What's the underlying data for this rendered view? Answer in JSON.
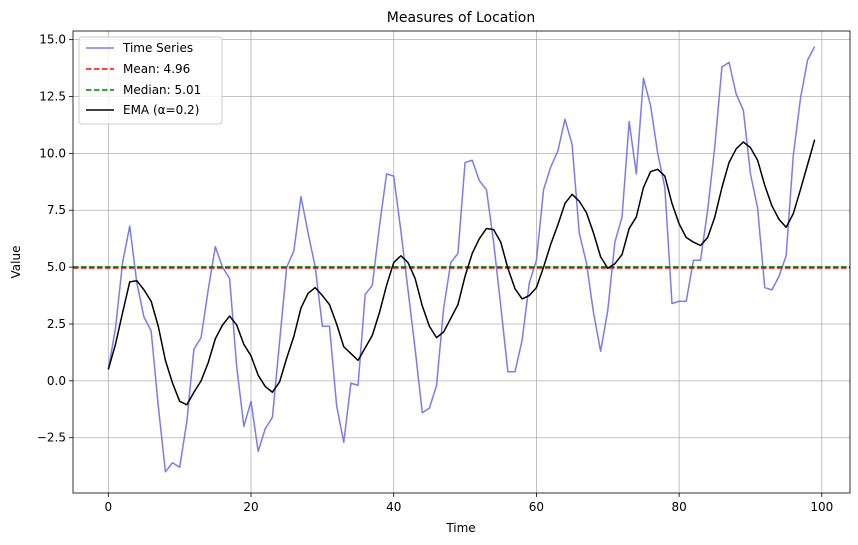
{
  "chart_data": {
    "type": "line",
    "title": "Measures of Location",
    "xlabel": "Time",
    "ylabel": "Value",
    "xlim": [
      -4.95,
      103.95
    ],
    "ylim": [
      -4.93,
      15.38
    ],
    "grid": true,
    "legend_location": "top-left",
    "xticks": [
      0,
      20,
      40,
      60,
      80,
      100
    ],
    "yticks": [
      -2.5,
      0.0,
      2.5,
      5.0,
      7.5,
      10.0,
      12.5,
      15.0
    ],
    "xtick_labels": [
      "0",
      "20",
      "40",
      "60",
      "80",
      "100"
    ],
    "ytick_labels": [
      "−2.5",
      "0.0",
      "2.5",
      "5.0",
      "7.5",
      "10.0",
      "12.5",
      "15.0"
    ],
    "series": [
      {
        "name": "Time Series",
        "label": "Time Series",
        "color": "#7b7bef",
        "style": "solid",
        "x": [
          0,
          1,
          2,
          3,
          4,
          5,
          6,
          7,
          8,
          9,
          10,
          11,
          12,
          13,
          14,
          15,
          16,
          17,
          18,
          19,
          20,
          21,
          22,
          23,
          24,
          25,
          26,
          27,
          28,
          29,
          30,
          31,
          32,
          33,
          34,
          35,
          36,
          37,
          38,
          39,
          40,
          41,
          42,
          43,
          44,
          45,
          46,
          47,
          48,
          49,
          50,
          51,
          52,
          53,
          54,
          55,
          56,
          57,
          58,
          59,
          60,
          61,
          62,
          63,
          64,
          65,
          66,
          67,
          68,
          69,
          70,
          71,
          72,
          73,
          74,
          75,
          76,
          77,
          78,
          79,
          80,
          81,
          82,
          83,
          84,
          85,
          86,
          87,
          88,
          89,
          90,
          91,
          92,
          93,
          94,
          95,
          96,
          97,
          98,
          99
        ],
        "values": [
          0.5,
          2.3,
          5.2,
          6.8,
          4.3,
          2.8,
          2.2,
          -1.1,
          -4.0,
          -3.6,
          -3.8,
          -1.8,
          1.4,
          1.9,
          4.0,
          5.9,
          5.0,
          4.5,
          0.6,
          -2.0,
          -0.9,
          -3.1,
          -2.1,
          -1.6,
          1.7,
          5.0,
          5.7,
          8.1,
          6.5,
          5.0,
          2.4,
          2.4,
          -1.1,
          -2.7,
          -0.1,
          -0.2,
          3.8,
          4.2,
          6.8,
          9.1,
          9.0,
          6.6,
          4.0,
          1.4,
          -1.4,
          -1.2,
          -0.2,
          3.2,
          5.2,
          5.6,
          9.6,
          9.7,
          8.8,
          8.4,
          6.1,
          3.3,
          0.4,
          0.4,
          1.8,
          4.3,
          5.3,
          8.4,
          9.4,
          10.1,
          11.5,
          10.4,
          6.5,
          5.2,
          3.0,
          1.3,
          3.1,
          6.1,
          7.2,
          11.4,
          9.1,
          13.3,
          12.1,
          10.0,
          8.5,
          3.4,
          3.5,
          3.5,
          5.3,
          5.3,
          7.5,
          10.3,
          13.8,
          14.0,
          12.6,
          11.9,
          9.1,
          7.6,
          4.1,
          4.0,
          4.6,
          5.5,
          9.9,
          12.4,
          14.1,
          14.7
        ]
      },
      {
        "name": "Mean",
        "label": "Mean: 4.96",
        "color": "#ff0000",
        "style": "dashed",
        "value": 4.96
      },
      {
        "name": "Median",
        "label": "Median: 5.01",
        "color": "#008000",
        "style": "dashed",
        "value": 5.01
      },
      {
        "name": "EMA",
        "label": "EMA (α=0.2)",
        "color": "#000000",
        "style": "solid",
        "x": [
          0,
          1,
          2,
          3,
          4,
          5,
          6,
          7,
          8,
          9,
          10,
          11,
          12,
          13,
          14,
          15,
          16,
          17,
          18,
          19,
          20,
          21,
          22,
          23,
          24,
          25,
          26,
          27,
          28,
          29,
          30,
          31,
          32,
          33,
          34,
          35,
          36,
          37,
          38,
          39,
          40,
          41,
          42,
          43,
          44,
          45,
          46,
          47,
          48,
          49,
          50,
          51,
          52,
          53,
          54,
          55,
          56,
          57,
          58,
          59,
          60,
          61,
          62,
          63,
          64,
          65,
          66,
          67,
          68,
          69,
          70,
          71,
          72,
          73,
          74,
          75,
          76,
          77,
          78,
          79,
          80,
          81,
          82,
          83,
          84,
          85,
          86,
          87,
          88,
          89,
          90,
          91,
          92,
          93,
          94,
          95,
          96,
          97,
          98,
          99
        ],
        "values": [
          0.5,
          1.6,
          3.0,
          4.35,
          4.4,
          4.0,
          3.5,
          2.4,
          0.9,
          -0.1,
          -0.9,
          -1.05,
          -0.5,
          0.0,
          0.8,
          1.85,
          2.45,
          2.85,
          2.45,
          1.6,
          1.1,
          0.25,
          -0.25,
          -0.5,
          -0.05,
          1.0,
          1.95,
          3.2,
          3.85,
          4.1,
          3.75,
          3.35,
          2.5,
          1.5,
          1.2,
          0.9,
          1.45,
          2.0,
          3.0,
          4.2,
          5.2,
          5.5,
          5.2,
          4.5,
          3.3,
          2.4,
          1.9,
          2.15,
          2.75,
          3.35,
          4.6,
          5.6,
          6.25,
          6.7,
          6.65,
          6.1,
          4.95,
          4.05,
          3.6,
          3.75,
          4.1,
          5.0,
          6.0,
          6.85,
          7.8,
          8.2,
          7.9,
          7.4,
          6.5,
          5.45,
          4.95,
          5.15,
          5.55,
          6.7,
          7.2,
          8.5,
          9.2,
          9.3,
          9.0,
          7.8,
          6.9,
          6.3,
          6.1,
          5.95,
          6.3,
          7.2,
          8.5,
          9.6,
          10.2,
          10.5,
          10.25,
          9.7,
          8.6,
          7.7,
          7.1,
          6.75,
          7.35,
          8.4,
          9.5,
          10.6
        ]
      }
    ]
  }
}
